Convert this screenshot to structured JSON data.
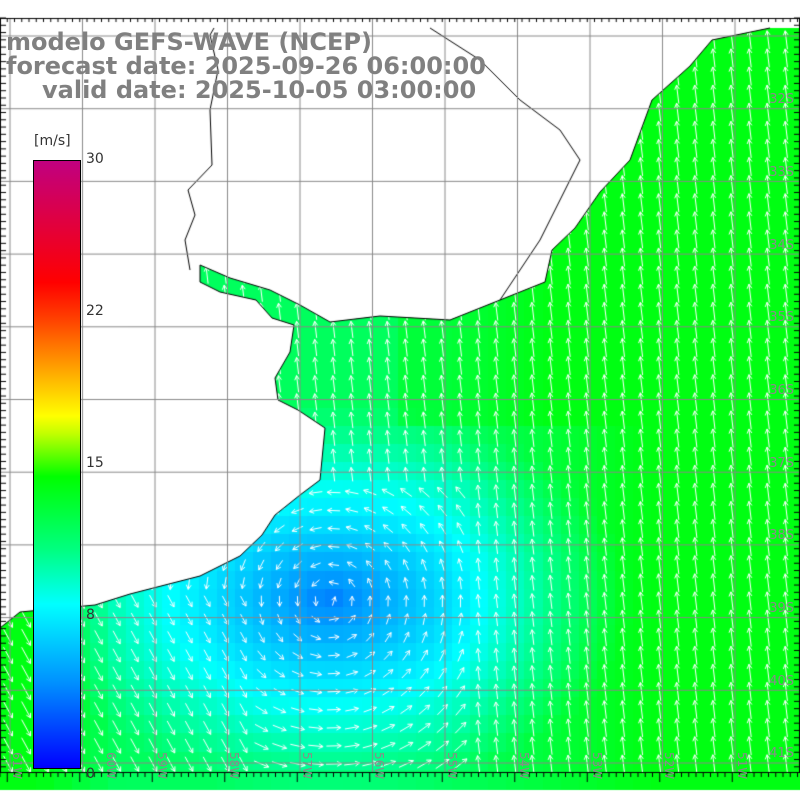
{
  "title": {
    "model": "modelo GEFS-WAVE (NCEP)",
    "forecast": "forecast date: 2025-09-26 06:00:00",
    "valid": "valid date: 2025-10-05 03:00:00"
  },
  "colorbar": {
    "unit": "[m/s]",
    "labels": [
      "30",
      "22",
      "15",
      "8",
      "0"
    ],
    "min": 0,
    "max": 30
  },
  "lat_labels": [
    "32S",
    "33S",
    "34S",
    "35S",
    "36S",
    "37S",
    "38S",
    "39S",
    "40S",
    "41S"
  ],
  "lon_labels": [
    "61W",
    "60W",
    "59W",
    "58W",
    "57W",
    "56W",
    "55W",
    "54W",
    "53W",
    "52W",
    "51W"
  ]
}
